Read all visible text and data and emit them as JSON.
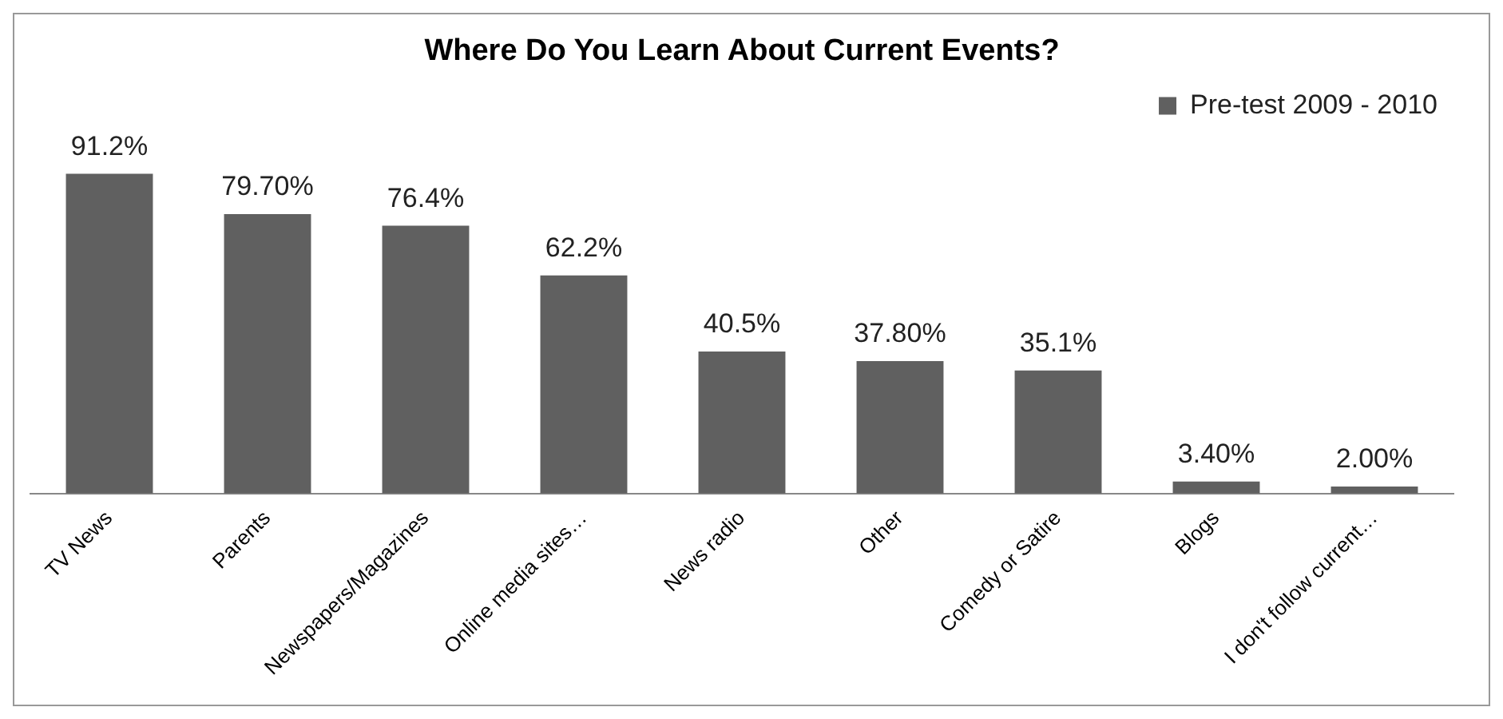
{
  "chart_data": {
    "type": "bar",
    "title": "Where Do You Learn About Current Events?",
    "categories": [
      "TV News",
      "Parents",
      "Newspapers/Magazines",
      "Online media sites…",
      "News radio",
      "Other",
      "Comedy or Satire",
      "Blogs",
      "I don't follow current…"
    ],
    "series": [
      {
        "name": "Pre-test 2009 - 2010",
        "color": "#606060",
        "values": [
          91.2,
          79.7,
          76.4,
          62.2,
          40.5,
          37.8,
          35.1,
          3.4,
          2.0
        ],
        "value_labels": [
          "91.2%",
          "79.70%",
          "76.4%",
          "62.2%",
          "40.5%",
          "37.80%",
          "35.1%",
          "3.40%",
          "2.00%"
        ]
      }
    ],
    "legend": "top right",
    "grid": false
  }
}
